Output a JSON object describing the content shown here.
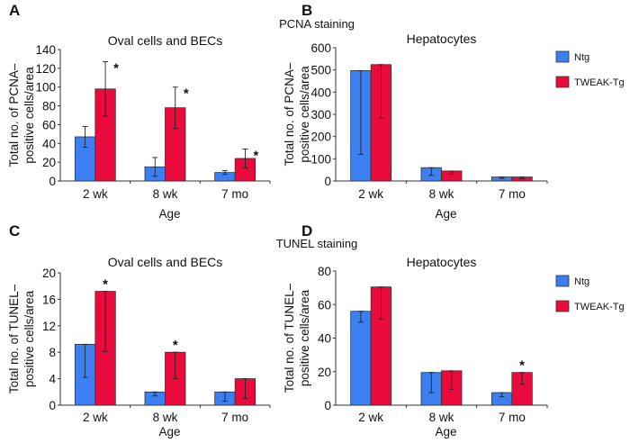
{
  "colors": {
    "Ntg": "#3b7ff0",
    "TWEAK-Tg": "#ea0a3c"
  },
  "legend": [
    "Ntg",
    "TWEAK-Tg"
  ],
  "sections": [
    {
      "title": "PCNA staining"
    },
    {
      "title": "TUNEL staining"
    }
  ],
  "chart_data": [
    {
      "panel": "A",
      "type": "bar",
      "title": "Oval cells and BECs",
      "xlabel": "Age",
      "ylabel": [
        "Total no. of PCNA–",
        "positive cells/area"
      ],
      "categories": [
        "2 wk",
        "8 wk",
        "7 mo"
      ],
      "ylim": [
        0,
        140
      ],
      "yticks": [
        0,
        20,
        40,
        60,
        80,
        100,
        120,
        140
      ],
      "series": [
        {
          "name": "Ntg",
          "values": [
            47,
            15,
            9
          ],
          "error_low": [
            36,
            5,
            7
          ],
          "error_high": [
            58,
            25,
            11
          ]
        },
        {
          "name": "TWEAK-Tg",
          "values": [
            98,
            78,
            24
          ],
          "error_low": [
            69,
            56,
            14
          ],
          "error_high": [
            127,
            100,
            34
          ]
        }
      ],
      "significance": {
        "TWEAK-Tg": [
          true,
          true,
          true
        ],
        "Ntg": [
          false,
          false,
          false
        ]
      },
      "legend": false
    },
    {
      "panel": "B",
      "type": "bar",
      "title": "Hepatocytes",
      "xlabel": "Age",
      "ylabel": [
        "Total no. of PCNA–",
        "positive cells/area"
      ],
      "categories": [
        "2 wk",
        "8 wk",
        "7 mo"
      ],
      "ylim": [
        0,
        600
      ],
      "yticks": [
        0,
        100,
        200,
        300,
        400,
        500,
        600
      ],
      "series": [
        {
          "name": "Ntg",
          "values": [
            497,
            60,
            18
          ],
          "error_low": [
            120,
            25,
            12
          ],
          "error_high": [
            497,
            60,
            18
          ]
        },
        {
          "name": "TWEAK-Tg",
          "values": [
            524,
            45,
            18
          ],
          "error_low": [
            283,
            30,
            10
          ],
          "error_high": [
            524,
            45,
            18
          ]
        }
      ],
      "significance": {
        "TWEAK-Tg": [
          false,
          false,
          false
        ],
        "Ntg": [
          false,
          false,
          false
        ]
      },
      "legend": "right"
    },
    {
      "panel": "C",
      "type": "bar",
      "title": "Oval cells and BECs",
      "xlabel": "Age",
      "ylabel": [
        "Total no. of TUNEL–",
        "positive cells/area"
      ],
      "categories": [
        "2 wk",
        "8 wk",
        "7 mo"
      ],
      "ylim": [
        0,
        20
      ],
      "yticks": [
        0,
        4,
        8,
        12,
        16,
        20
      ],
      "series": [
        {
          "name": "Ntg",
          "values": [
            9.2,
            2,
            2
          ],
          "error_low": [
            4.2,
            1.4,
            0.6
          ],
          "error_high": [
            9.2,
            2,
            2
          ]
        },
        {
          "name": "TWEAK-Tg",
          "values": [
            17.2,
            8,
            4
          ],
          "error_low": [
            8.1,
            4,
            1
          ],
          "error_high": [
            17.2,
            8,
            4
          ]
        }
      ],
      "significance": {
        "TWEAK-Tg": [
          true,
          true,
          false
        ],
        "Ntg": [
          false,
          false,
          false
        ]
      },
      "legend": false
    },
    {
      "panel": "D",
      "type": "bar",
      "title": "Hepatocytes",
      "xlabel": "Age",
      "ylabel": [
        "Total no. of TUNEL–",
        "positive cells/area"
      ],
      "categories": [
        "2 wk",
        "8 wk",
        "7 mo"
      ],
      "ylim": [
        0,
        80
      ],
      "yticks": [
        0,
        20,
        40,
        60,
        80
      ],
      "series": [
        {
          "name": "Ntg",
          "values": [
            56,
            19.5,
            7.5
          ],
          "error_low": [
            49.5,
            7.5,
            5
          ],
          "error_high": [
            56,
            19.5,
            7.5
          ]
        },
        {
          "name": "TWEAK-Tg",
          "values": [
            70.5,
            20.5,
            19.5
          ],
          "error_low": [
            51.5,
            9.5,
            12.5
          ],
          "error_high": [
            70.5,
            20.5,
            19.5
          ]
        }
      ],
      "significance": {
        "TWEAK-Tg": [
          false,
          false,
          true
        ],
        "Ntg": [
          false,
          false,
          false
        ]
      },
      "legend": "right"
    }
  ]
}
